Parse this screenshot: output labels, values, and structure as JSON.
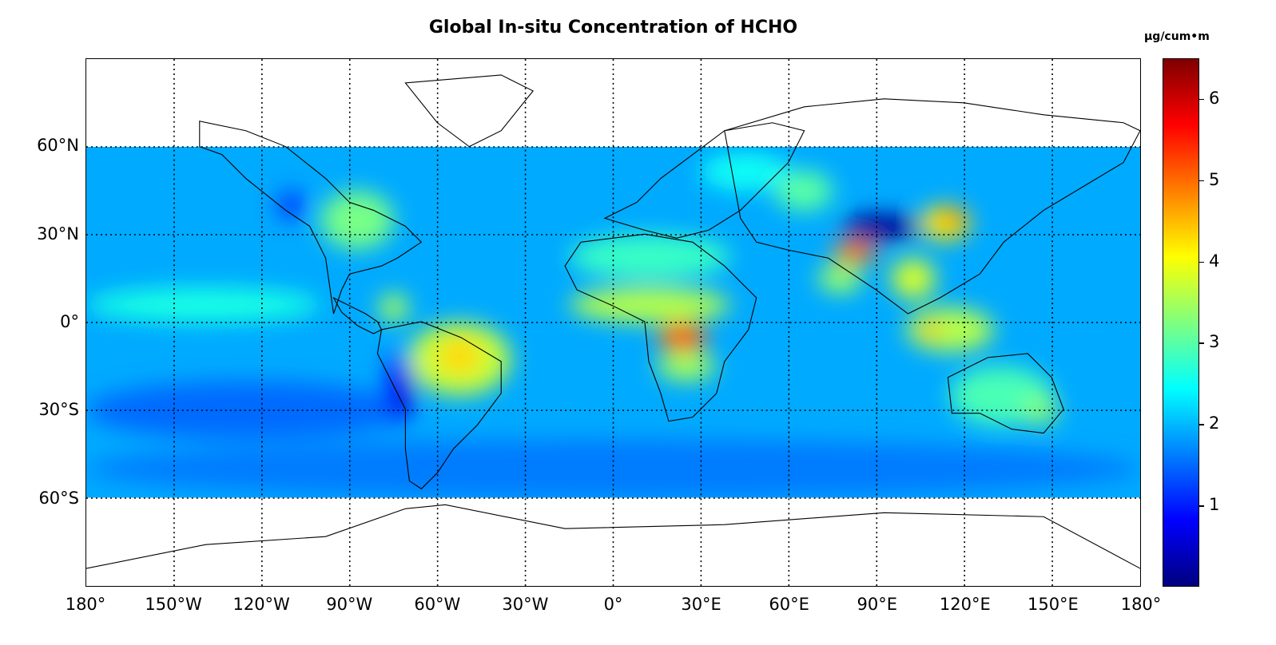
{
  "map": {
    "title": "Global In-situ Concentration of HCHO",
    "variable": "HCHO",
    "lon_range": [
      -180,
      180
    ],
    "lat_range": [
      -90,
      90
    ],
    "data_lat_range": [
      -60,
      60
    ],
    "gridlines": "dotted",
    "lat_ticks": [
      {
        "value": 60,
        "label": "60°N"
      },
      {
        "value": 30,
        "label": "30°N"
      },
      {
        "value": 0,
        "label": "0°"
      },
      {
        "value": -30,
        "label": "30°S"
      },
      {
        "value": -60,
        "label": "60°S"
      }
    ],
    "lon_ticks": [
      {
        "value": -180,
        "label": "180°"
      },
      {
        "value": -150,
        "label": "150°W"
      },
      {
        "value": -120,
        "label": "120°W"
      },
      {
        "value": -90,
        "label": "90°W"
      },
      {
        "value": -60,
        "label": "60°W"
      },
      {
        "value": -30,
        "label": "30°W"
      },
      {
        "value": 0,
        "label": "0°"
      },
      {
        "value": 30,
        "label": "30°E"
      },
      {
        "value": 60,
        "label": "60°E"
      },
      {
        "value": 90,
        "label": "90°E"
      },
      {
        "value": 120,
        "label": "120°E"
      },
      {
        "value": 150,
        "label": "150°E"
      },
      {
        "value": 180,
        "label": "180°"
      }
    ],
    "field_regions": [
      {
        "lon": [
          -180,
          180
        ],
        "lat": [
          -60,
          60
        ],
        "value": 1.9
      },
      {
        "lon": [
          -180,
          -100
        ],
        "lat": [
          0,
          12
        ],
        "value": 2.6
      },
      {
        "lon": [
          -180,
          180
        ],
        "lat": [
          -60,
          -40
        ],
        "value": 1.6
      },
      {
        "lon": [
          -180,
          -70
        ],
        "lat": [
          -40,
          -20
        ],
        "value": 1.5
      },
      {
        "lon": [
          -70,
          -35
        ],
        "lat": [
          -25,
          0
        ],
        "value": 3.7
      },
      {
        "lon": [
          -60,
          -45
        ],
        "lat": [
          -18,
          -5
        ],
        "value": 4.3
      },
      {
        "lon": [
          -78,
          -68
        ],
        "lat": [
          -35,
          -10
        ],
        "value": 1.0
      },
      {
        "lon": [
          -72,
          -68
        ],
        "lat": [
          -30,
          -18
        ],
        "value": 0.3
      },
      {
        "lon": [
          -100,
          -75
        ],
        "lat": [
          25,
          45
        ],
        "value": 3.2
      },
      {
        "lon": [
          -115,
          -105
        ],
        "lat": [
          35,
          45
        ],
        "value": 1.2
      },
      {
        "lon": [
          -80,
          -70
        ],
        "lat": [
          0,
          10
        ],
        "value": 3.5
      },
      {
        "lon": [
          -15,
          40
        ],
        "lat": [
          0,
          12
        ],
        "value": 3.6
      },
      {
        "lon": [
          15,
          32
        ],
        "lat": [
          -10,
          0
        ],
        "value": 4.9
      },
      {
        "lon": [
          20,
          30
        ],
        "lat": [
          -8,
          -2
        ],
        "value": 5.3
      },
      {
        "lon": [
          15,
          35
        ],
        "lat": [
          -20,
          -10
        ],
        "value": 3.5
      },
      {
        "lon": [
          -15,
          40
        ],
        "lat": [
          15,
          30
        ],
        "value": 2.8
      },
      {
        "lon": [
          75,
          90
        ],
        "lat": [
          20,
          28
        ],
        "value": 4.8
      },
      {
        "lon": [
          80,
          88
        ],
        "lat": [
          23,
          27
        ],
        "value": 5.4
      },
      {
        "lon": [
          70,
          85
        ],
        "lat": [
          10,
          20
        ],
        "value": 3.4
      },
      {
        "lon": [
          78,
          105
        ],
        "lat": [
          28,
          37
        ],
        "value": 0.1
      },
      {
        "lon": [
          105,
          122
        ],
        "lat": [
          28,
          40
        ],
        "value": 4.2
      },
      {
        "lon": [
          112,
          120
        ],
        "lat": [
          33,
          38
        ],
        "value": 5.0
      },
      {
        "lon": [
          95,
          110
        ],
        "lat": [
          8,
          22
        ],
        "value": 3.8
      },
      {
        "lon": [
          100,
          130
        ],
        "lat": [
          -10,
          5
        ],
        "value": 3.6
      },
      {
        "lon": [
          105,
          112
        ],
        "lat": [
          -5,
          0
        ],
        "value": 4.7
      },
      {
        "lon": [
          115,
          150
        ],
        "lat": [
          -35,
          -15
        ],
        "value": 2.9
      },
      {
        "lon": [
          140,
          152
        ],
        "lat": [
          -35,
          -25
        ],
        "value": 3.3
      },
      {
        "lon": [
          55,
          75
        ],
        "lat": [
          38,
          52
        ],
        "value": 3.0
      },
      {
        "lon": [
          30,
          60
        ],
        "lat": [
          45,
          58
        ],
        "value": 2.5
      }
    ]
  },
  "colorbar": {
    "unit": "μg/cum•m",
    "min": 0,
    "max": 6.5,
    "colormap": [
      "#00007f",
      "#0000ff",
      "#007fff",
      "#00ffff",
      "#7fff7f",
      "#ffff00",
      "#ff7f00",
      "#ff0000",
      "#7f0000"
    ],
    "ticks": [
      {
        "value": 1,
        "label": "1"
      },
      {
        "value": 2,
        "label": "2"
      },
      {
        "value": 3,
        "label": "3"
      },
      {
        "value": 4,
        "label": "4"
      },
      {
        "value": 5,
        "label": "5"
      },
      {
        "value": 6,
        "label": "6"
      }
    ]
  }
}
